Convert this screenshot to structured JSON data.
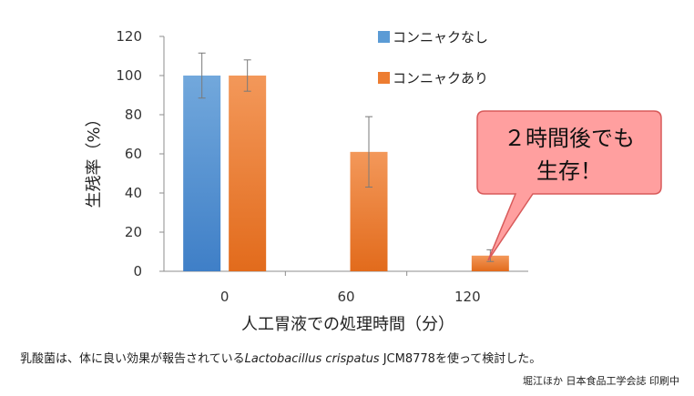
{
  "chart_data": {
    "type": "bar",
    "categories": [
      "0",
      "60",
      "120"
    ],
    "series": [
      {
        "name": "コンニャクなし",
        "color": "#5B9BD5",
        "values": [
          100,
          null,
          null
        ],
        "errors": [
          11.5,
          null,
          null
        ]
      },
      {
        "name": "コンニャクあり",
        "color": "#ED7D31",
        "values": [
          100,
          61,
          8
        ],
        "errors": [
          8,
          18,
          3
        ]
      }
    ],
    "yticks": [
      "120",
      "100",
      "80",
      "60",
      "40",
      "20",
      "0"
    ],
    "ylim": [
      0,
      120
    ],
    "xlabel": "人工胃液での処理時間（分）",
    "ylabel": "生残率（%）",
    "legend_position": "top-right",
    "grid": false
  },
  "callout": {
    "line1": "２時間後でも",
    "line2": "生存！",
    "fill": "#FF9F9F"
  },
  "caption": {
    "prefix": "乳酸菌は、体に良い効果が報告されている",
    "species": "Lactobacillus crispatus",
    "suffix": " JCM8778を使って検討した。"
  },
  "credit": "堀江ほか 日本食品工学会誌 印刷中"
}
